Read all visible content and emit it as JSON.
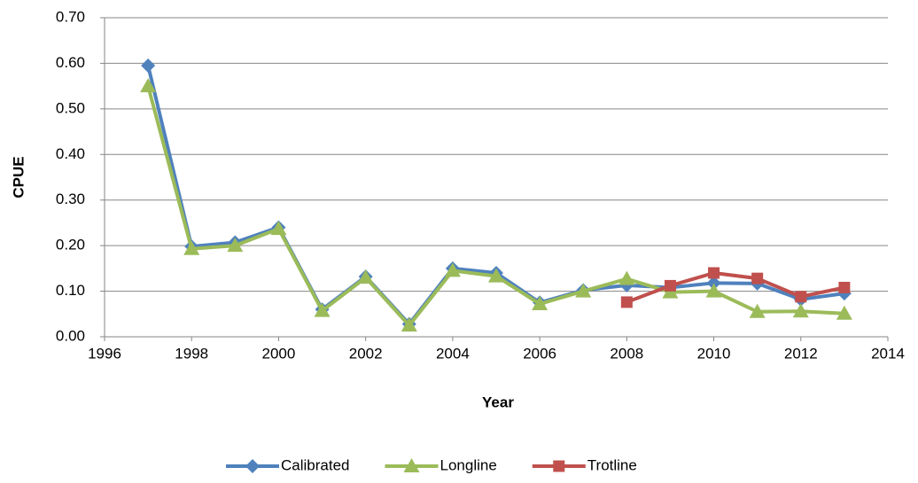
{
  "chart_data": {
    "type": "line",
    "x_label": "Year",
    "y_label": "CPUE",
    "x": [
      1997,
      1998,
      1999,
      2000,
      2001,
      2002,
      2003,
      2004,
      2005,
      2006,
      2007,
      2008,
      2009,
      2010,
      2011,
      2012,
      2013
    ],
    "series": [
      {
        "name": "Calibrated",
        "color": "#4f81bd",
        "marker": "diamond",
        "values": [
          0.595,
          0.198,
          0.207,
          0.24,
          0.06,
          0.132,
          0.028,
          0.15,
          0.14,
          0.075,
          0.102,
          0.113,
          0.108,
          0.118,
          0.117,
          0.082,
          0.095
        ]
      },
      {
        "name": "Longline",
        "color": "#9bbb59",
        "marker": "triangle",
        "values": [
          0.55,
          0.193,
          0.2,
          0.237,
          0.057,
          0.13,
          0.025,
          0.145,
          0.133,
          0.072,
          0.1,
          0.127,
          0.098,
          0.1,
          0.055,
          0.056,
          0.051
        ]
      },
      {
        "name": "Trotline",
        "color": "#c0504d",
        "marker": "square",
        "values": [
          null,
          null,
          null,
          null,
          null,
          null,
          null,
          null,
          null,
          null,
          null,
          0.076,
          0.112,
          0.14,
          0.128,
          0.088,
          0.108
        ]
      }
    ],
    "xlim": [
      1996,
      2014
    ],
    "xticks": [
      1996,
      1998,
      2000,
      2002,
      2004,
      2006,
      2008,
      2010,
      2012,
      2014
    ],
    "ylim": [
      0,
      0.7
    ],
    "yticks": [
      {
        "value": 0,
        "label": "0.00"
      },
      {
        "value": 0.1,
        "label": "0.10"
      },
      {
        "value": 0.2,
        "label": "0.20"
      },
      {
        "value": 0.3,
        "label": "0.30"
      },
      {
        "value": 0.4,
        "label": "0.40"
      },
      {
        "value": 0.5,
        "label": "0.50"
      },
      {
        "value": 0.6,
        "label": "0.60"
      },
      {
        "value": 0.7,
        "label": "0.70"
      }
    ],
    "grid": true,
    "legend": "bottom"
  }
}
